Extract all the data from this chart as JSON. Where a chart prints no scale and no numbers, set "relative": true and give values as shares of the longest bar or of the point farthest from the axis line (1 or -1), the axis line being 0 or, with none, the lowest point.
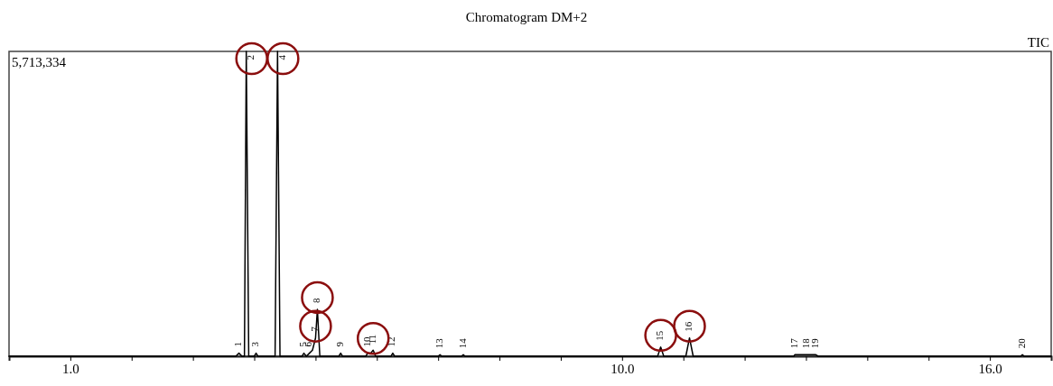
{
  "chart_data": {
    "type": "line",
    "title": "Chromatogram DM+2",
    "relative": true,
    "xlim": [
      0,
      17
    ],
    "xticks": [
      {
        "value": 1,
        "label": "1.0"
      },
      {
        "value": 2,
        "label": null
      },
      {
        "value": 3,
        "label": null
      },
      {
        "value": 4,
        "label": null
      },
      {
        "value": 5,
        "label": null
      },
      {
        "value": 6,
        "label": null
      },
      {
        "value": 7,
        "label": null
      },
      {
        "value": 8,
        "label": null
      },
      {
        "value": 9,
        "label": null
      },
      {
        "value": 10,
        "label": "10.0"
      },
      {
        "value": 11,
        "label": null
      },
      {
        "value": 12,
        "label": null
      },
      {
        "value": 13,
        "label": null
      },
      {
        "value": 14,
        "label": null
      },
      {
        "value": 15,
        "label": null
      },
      {
        "value": 16,
        "label": "16.0"
      }
    ],
    "series": [
      {
        "color": "#000000",
        "x": [
          0,
          3.7,
          3.75,
          3.8,
          3.84,
          3.87,
          3.91,
          4.0,
          4.03,
          4.06,
          4.34,
          4.38,
          4.42,
          4.78,
          4.81,
          4.85,
          4.9,
          4.95,
          5.0,
          5.03,
          5.07,
          5.38,
          5.41,
          5.44,
          5.82,
          5.85,
          5.9,
          5.94,
          5.98,
          6.23,
          6.26,
          6.29,
          7.0,
          7.03,
          7.06,
          7.38,
          7.41,
          7.44,
          10.58,
          10.63,
          10.68,
          11.04,
          11.1,
          11.16,
          12.8,
          12.82,
          13.01,
          13.16,
          13.2,
          16.5,
          16.53,
          16.56,
          17
        ],
        "values": [
          0,
          0,
          0.01,
          0,
          0,
          1,
          0,
          0,
          0.01,
          0,
          0,
          1,
          0,
          0,
          0.01,
          0,
          0.01,
          0.02,
          0.06,
          0.154,
          0,
          0,
          0.01,
          0,
          0,
          0.01,
          0.01,
          0.02,
          0,
          0,
          0.01,
          0,
          0,
          0.005,
          0,
          0,
          0.005,
          0,
          0,
          0.03,
          0,
          0,
          0.06,
          0,
          0,
          0.005,
          0.005,
          0.005,
          0,
          0,
          0.005,
          0,
          0
        ]
      }
    ],
    "annotations": [
      "5,713,334",
      "TIC",
      {
        "text": "1",
        "x": 3.75,
        "y": 0.01
      },
      {
        "text": "2",
        "x": 3.87,
        "y": 1
      },
      {
        "text": "3",
        "x": 4.03,
        "y": 0.01
      },
      {
        "text": "4",
        "x": 4.38,
        "y": 1
      },
      {
        "text": "5",
        "x": 4.81,
        "y": 0.01
      },
      {
        "text": "6",
        "x": 4.9,
        "y": 0.01
      },
      {
        "text": "7",
        "x": 5.0,
        "y": 0.06
      },
      {
        "text": "8",
        "x": 5.03,
        "y": 0.154
      },
      {
        "text": "9",
        "x": 5.41,
        "y": 0.01
      },
      {
        "text": "10",
        "x": 5.85,
        "y": 0.01
      },
      {
        "text": "11",
        "x": 5.94,
        "y": 0.02
      },
      {
        "text": "12",
        "x": 6.26,
        "y": 0.01
      },
      {
        "text": "13",
        "x": 7.03,
        "y": 0.005
      },
      {
        "text": "14",
        "x": 7.41,
        "y": 0.005
      },
      {
        "text": "15",
        "x": 10.63,
        "y": 0.03
      },
      {
        "text": "16",
        "x": 11.1,
        "y": 0.06
      },
      {
        "text": "17",
        "x": 12.82,
        "y": 0.005
      },
      {
        "text": "18",
        "x": 13.01,
        "y": 0.005
      },
      {
        "text": "19",
        "x": 13.16,
        "y": 0.005
      },
      {
        "text": "20",
        "x": 16.53,
        "y": 0.005
      }
    ]
  }
}
